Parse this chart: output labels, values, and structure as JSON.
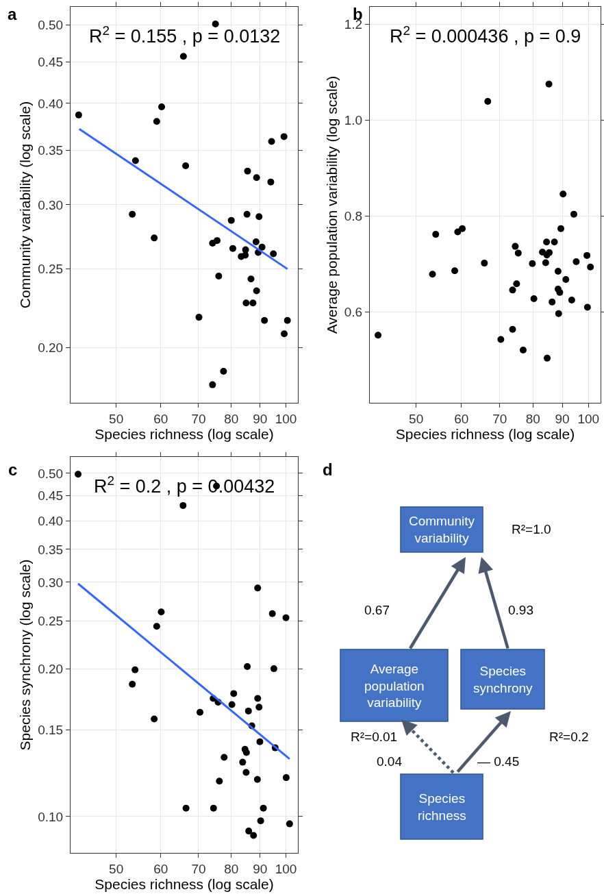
{
  "chart_data": [
    {
      "type": "scatter",
      "title": "a",
      "xlabel": "Species richness (log scale)",
      "ylabel": "Community variability (log scale)",
      "log": "xy",
      "grid": true,
      "marker": "circle",
      "xlim": [
        41.5,
        105
      ],
      "xticks": [
        50,
        60,
        70,
        80,
        90,
        100
      ],
      "ylim": [
        0.171,
        0.526
      ],
      "yticks": [
        {
          "value": 0.2,
          "label": "0.20"
        },
        0.25,
        {
          "value": 0.3,
          "label": "0.30"
        },
        0.35,
        {
          "value": 0.4,
          "label": "0.40"
        },
        0.45,
        {
          "value": 0.5,
          "label": "0.50"
        }
      ],
      "annotations": [
        "R$^{2}$ = 0.155 , p = 0.0132"
      ],
      "series": [
        {
          "type": "scatter",
          "color": "#000000",
          "x": [
            42.9,
            54.1,
            53.4,
            59.0,
            60.2,
            58.4,
            65.8,
            66.4,
            75.0,
            70.1,
            74.1,
            75.5,
            76.0,
            74.1,
            77.5,
            80.0,
            80.5,
            85.5,
            88.7,
            85.3,
            89.6,
            83.3,
            84.7,
            84.8,
            88.5,
            90.7,
            89.3,
            86.7,
            88.7,
            85.0,
            87.4,
            94.0,
            94.3,
            99.2,
            95.0,
            91.6,
            100.6,
            99.3
          ],
          "values": [
            0.387,
            0.34,
            0.292,
            0.38,
            0.396,
            0.273,
            0.457,
            0.335,
            0.501,
            0.218,
            0.269,
            0.271,
            0.245,
            0.18,
            0.187,
            0.287,
            0.265,
            0.33,
            0.324,
            0.292,
            0.29,
            0.259,
            0.26,
            0.264,
            0.27,
            0.266,
            0.262,
            0.243,
            0.235,
            0.227,
            0.227,
            0.32,
            0.359,
            0.364,
            0.261,
            0.216,
            0.216,
            0.208
          ]
        },
        {
          "type": "line",
          "marker": "none",
          "color": "#3366ff",
          "x": [
            43.0,
            100.6
          ],
          "values": [
            0.372,
            0.25
          ]
        }
      ]
    },
    {
      "type": "scatter",
      "title": "b",
      "xlabel": "Species richness (log scale)",
      "ylabel": "Average population variability (log scale)",
      "log": "x",
      "grid": true,
      "marker": "circle",
      "xlim": [
        41.5,
        105
      ],
      "xticks": [
        50,
        60,
        70,
        80,
        90,
        100
      ],
      "ylim": [
        0.411,
        1.236
      ],
      "yticks": [
        {
          "value": 0.6,
          "label": "0.6"
        },
        {
          "value": 0.8,
          "label": "0.8"
        },
        {
          "value": 1.0,
          "label": "1.0"
        },
        {
          "value": 1.2,
          "label": "1.2"
        }
      ],
      "annotations": [
        "R$^{2}$ = 0.000436 , p = 0.9"
      ],
      "series": [
        {
          "type": "scatter",
          "color": "#000000",
          "x": [
            42.9,
            66.7,
            85.3,
            90.3,
            94.3,
            89.5,
            54.1,
            59.1,
            60.2,
            53.4,
            58.4,
            65.8,
            74.5,
            75.4,
            84.5,
            87.2,
            83.1,
            84.6,
            85.4,
            79.8,
            84.2,
            99.4,
            95.2,
            100.8,
            88.5,
            91.3,
            74.9,
            73.7,
            88.5,
            89.1,
            80.3,
            86.4,
            93.5,
            99.6,
            88.7,
            73.7,
            70.3,
            76.9,
            84.7
          ],
          "values": [
            0.552,
            1.039,
            1.075,
            0.846,
            0.804,
            0.774,
            0.762,
            0.767,
            0.774,
            0.679,
            0.686,
            0.702,
            0.737,
            0.723,
            0.746,
            0.746,
            0.725,
            0.719,
            0.724,
            0.701,
            0.703,
            0.718,
            0.705,
            0.694,
            0.685,
            0.668,
            0.659,
            0.646,
            0.648,
            0.641,
            0.628,
            0.621,
            0.625,
            0.61,
            0.597,
            0.564,
            0.543,
            0.521,
            0.504
          ]
        }
      ]
    },
    {
      "type": "scatter",
      "title": "c",
      "xlabel": "Species richness (log scale)",
      "ylabel": "Species synchrony (log scale)",
      "log": "xy",
      "grid": true,
      "marker": "circle",
      "xlim": [
        41.5,
        105
      ],
      "xticks": [
        50,
        60,
        70,
        80,
        90,
        100
      ],
      "ylim": [
        0.0843,
        0.54
      ],
      "yticks": [
        {
          "value": 0.1,
          "label": "0.10"
        },
        0.15,
        {
          "value": 0.2,
          "label": "0.20"
        },
        0.25,
        {
          "value": 0.3,
          "label": "0.30"
        },
        0.35,
        {
          "value": 0.4,
          "label": "0.40"
        },
        0.45,
        {
          "value": 0.5,
          "label": "0.50"
        }
      ],
      "annotations": [
        "R$^{2}$ = 0.2 , p = 0.00432"
      ],
      "series": [
        {
          "type": "scatter",
          "color": "#000000",
          "x": [
            42.8,
            75.3,
            65.7,
            89.1,
            60.1,
            59.0,
            94.6,
            100.0,
            54.0,
            53.4,
            95.2,
            85.4,
            58.4,
            70.4,
            74.3,
            75.8,
            80.8,
            80.2,
            89.1,
            89.6,
            85.8,
            87.0,
            89.9,
            95.7,
            84.6,
            85.1,
            77.7,
            83.8,
            85.0,
            76.2,
            89.0,
            100.1,
            66.5,
            74.4,
            91.2,
            90.2,
            101.5,
            85.9,
            87.6
          ],
          "values": [
            0.498,
            0.471,
            0.43,
            0.292,
            0.261,
            0.244,
            0.259,
            0.254,
            0.199,
            0.186,
            0.2,
            0.202,
            0.158,
            0.163,
            0.174,
            0.171,
            0.178,
            0.169,
            0.174,
            0.167,
            0.164,
            0.153,
            0.142,
            0.138,
            0.137,
            0.135,
            0.132,
            0.129,
            0.123,
            0.118,
            0.119,
            0.12,
            0.104,
            0.104,
            0.104,
            0.098,
            0.0966,
            0.0934,
            0.0915
          ]
        },
        {
          "type": "line",
          "marker": "none",
          "color": "#3366ff",
          "x": [
            42.8,
            101.5
          ],
          "values": [
            0.298,
            0.131
          ]
        }
      ]
    },
    {
      "type": "other",
      "title": "d",
      "color": "#4472c4",
      "categories": [
        "Community\nvariability",
        "Average\npopulation\nvariability",
        "Species\nsynchrony",
        "Species\nrichness"
      ],
      "annotations": [
        "R²=1.0",
        "0.67",
        "0.93",
        "R²=0.01",
        "R²=0.2",
        "0.04",
        "— 0.45"
      ]
    }
  ]
}
